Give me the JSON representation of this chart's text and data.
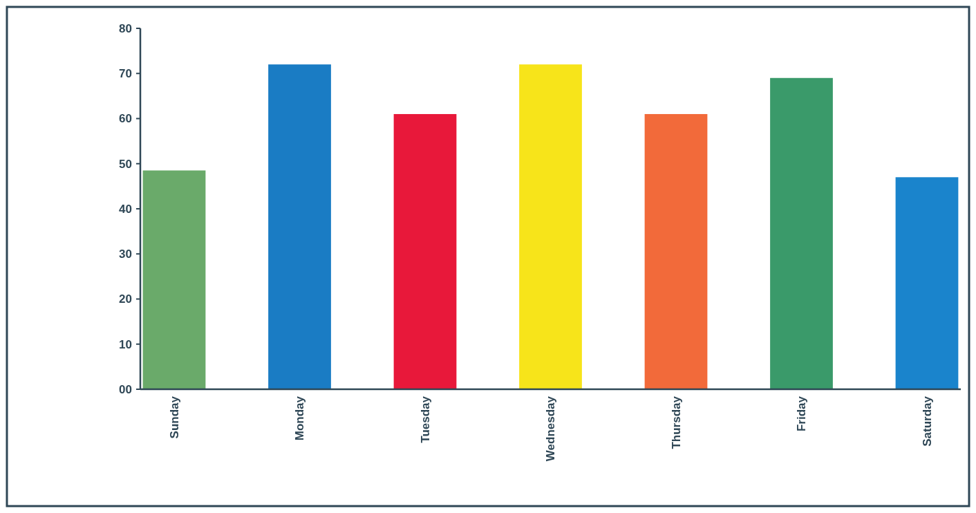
{
  "chart_data": {
    "type": "bar",
    "categories": [
      "Sunday",
      "Monday",
      "Tuesday",
      "Wednesday",
      "Thursday",
      "Friday",
      "Saturday"
    ],
    "values": [
      48.5,
      72,
      61,
      72,
      61,
      69,
      47
    ],
    "colors": [
      "#6aaa6a",
      "#1a7cc4",
      "#e8183a",
      "#f7e41a",
      "#f26a3a",
      "#3a9a6a",
      "#1a84cc"
    ],
    "ylim": [
      0,
      80
    ],
    "yticks": [
      {
        "value": 0,
        "label": "00"
      },
      10,
      20,
      30,
      40,
      50,
      60,
      70,
      80
    ],
    "grid": false
  }
}
